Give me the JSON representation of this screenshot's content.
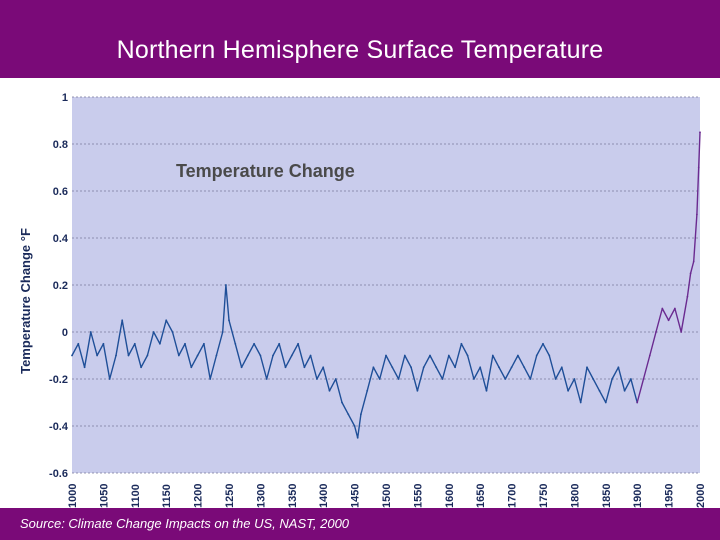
{
  "slide": {
    "title": "Northern Hemisphere Surface Temperature",
    "source": "Source: Climate Change Impacts on the US, NAST, 2000"
  },
  "colors": {
    "header_bg": "#7a0a78",
    "plot_bg": "#c9ccec",
    "series_blue": "#1f4f98",
    "series_purple": "#6a2a90"
  },
  "chart_data": {
    "type": "line",
    "title": "Temperature Change",
    "xlabel": "",
    "ylabel": "Temperature Change °F",
    "xlim": [
      1000,
      2000
    ],
    "ylim": [
      -0.6,
      1.0
    ],
    "grid": true,
    "x_ticks": [
      "1000",
      "1050",
      "1100",
      "1150",
      "1200",
      "1250",
      "1300",
      "1350",
      "1400",
      "1450",
      "1500",
      "1550",
      "1600",
      "1650",
      "1700",
      "1750",
      "1800",
      "1850",
      "1900",
      "1950",
      "2000"
    ],
    "y_ticks": [
      "1",
      "0.8",
      "0.6",
      "0.4",
      "0.2",
      "0",
      "-0.2",
      "-0.4",
      "-0.6"
    ],
    "series": [
      {
        "name": "",
        "color": "#1f4f98",
        "x": [
          1000,
          1010,
          1020,
          1030,
          1040,
          1050,
          1060,
          1070,
          1080,
          1090,
          1100,
          1110,
          1120,
          1130,
          1140,
          1150,
          1160,
          1170,
          1180,
          1190,
          1200,
          1210,
          1220,
          1230,
          1240,
          1245,
          1250,
          1260,
          1270,
          1280,
          1290,
          1300,
          1310,
          1320,
          1330,
          1340,
          1350,
          1360,
          1370,
          1380,
          1390,
          1400,
          1410,
          1420,
          1430,
          1440,
          1450,
          1455,
          1460,
          1470,
          1480,
          1490,
          1500,
          1510,
          1520,
          1530,
          1540,
          1550,
          1560,
          1570,
          1580,
          1590,
          1600,
          1610,
          1620,
          1630,
          1640,
          1650,
          1660,
          1670,
          1680,
          1690,
          1700,
          1710,
          1720,
          1730,
          1740,
          1750,
          1760,
          1770,
          1780,
          1790,
          1800,
          1810,
          1820,
          1830,
          1840,
          1850,
          1860,
          1870,
          1880,
          1890,
          1900
        ],
        "values": [
          -0.1,
          -0.05,
          -0.15,
          0.0,
          -0.1,
          -0.05,
          -0.2,
          -0.1,
          0.05,
          -0.1,
          -0.05,
          -0.15,
          -0.1,
          0.0,
          -0.05,
          0.05,
          0.0,
          -0.1,
          -0.05,
          -0.15,
          -0.1,
          -0.05,
          -0.2,
          -0.1,
          0.0,
          0.2,
          0.05,
          -0.05,
          -0.15,
          -0.1,
          -0.05,
          -0.1,
          -0.2,
          -0.1,
          -0.05,
          -0.15,
          -0.1,
          -0.05,
          -0.15,
          -0.1,
          -0.2,
          -0.15,
          -0.25,
          -0.2,
          -0.3,
          -0.35,
          -0.4,
          -0.45,
          -0.35,
          -0.25,
          -0.15,
          -0.2,
          -0.1,
          -0.15,
          -0.2,
          -0.1,
          -0.15,
          -0.25,
          -0.15,
          -0.1,
          -0.15,
          -0.2,
          -0.1,
          -0.15,
          -0.05,
          -0.1,
          -0.2,
          -0.15,
          -0.25,
          -0.1,
          -0.15,
          -0.2,
          -0.15,
          -0.1,
          -0.15,
          -0.2,
          -0.1,
          -0.05,
          -0.1,
          -0.2,
          -0.15,
          -0.25,
          -0.2,
          -0.3,
          -0.15,
          -0.2,
          -0.25,
          -0.3,
          -0.2,
          -0.15,
          -0.25,
          -0.2,
          -0.3
        ]
      },
      {
        "name": "",
        "color": "#6a2a90",
        "x": [
          1900,
          1910,
          1920,
          1930,
          1940,
          1950,
          1960,
          1970,
          1980,
          1985,
          1990,
          1995,
          1998,
          2000
        ],
        "values": [
          -0.3,
          -0.2,
          -0.1,
          0.0,
          0.1,
          0.05,
          0.1,
          0.0,
          0.15,
          0.25,
          0.3,
          0.5,
          0.7,
          0.85
        ]
      }
    ]
  }
}
